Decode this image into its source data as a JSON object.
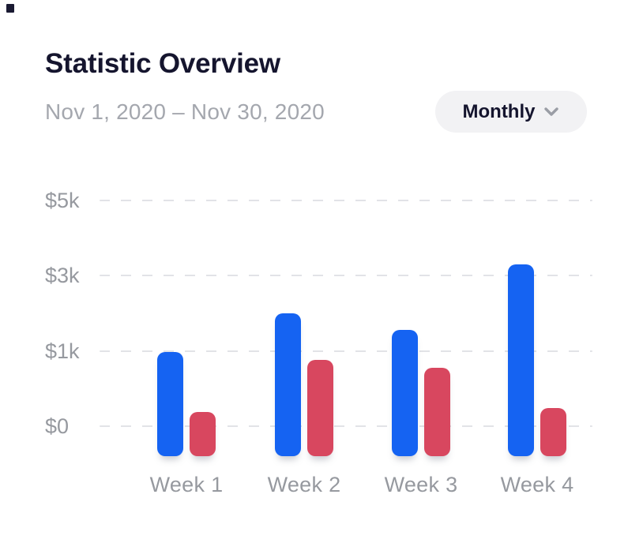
{
  "header": {
    "title": "Statistic Overview",
    "date_range": "Nov 1, 2020 – Nov 30, 2020",
    "period_selector": {
      "value": "Monthly",
      "icon": "chevron-down"
    }
  },
  "colors": {
    "title_text": "#15152E",
    "subtitle_text": "#A4A7AE",
    "axis_label_text": "#96999F",
    "grid_line": "#E2E3E7",
    "pill_bg": "#F2F2F4",
    "chevron_icon": "#9A9DA5",
    "bar_blue": "#1563F2",
    "bar_red": "#D8475F"
  },
  "chart_data": {
    "type": "bar",
    "title": "Statistic Overview",
    "categories": [
      "Week 1",
      "Week 2",
      "Week 3",
      "Week 4"
    ],
    "series": [
      {
        "name": "blue",
        "color": "#1563F2",
        "values": [
          980,
          2000,
          1550,
          3300
        ]
      },
      {
        "name": "red",
        "color": "#D8475F",
        "values": [
          190,
          880,
          770,
          240
        ]
      }
    ],
    "y_ticks": [
      {
        "label": "$0",
        "value": 0
      },
      {
        "label": "$1k",
        "value": 1000
      },
      {
        "label": "$3k",
        "value": 3000
      },
      {
        "label": "$5k",
        "value": 5000
      }
    ],
    "xlabel": "",
    "ylabel": "",
    "legend": "none",
    "grid": "horizontal-dashed",
    "axis_scale": "y ticks evenly spaced (non-linear value scale)"
  }
}
